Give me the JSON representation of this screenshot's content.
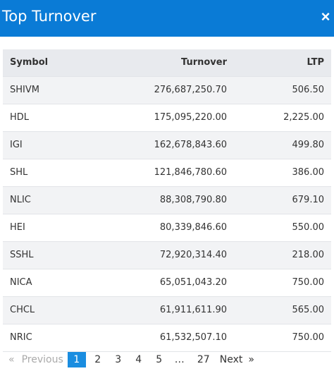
{
  "header": {
    "title": "Top Turnover",
    "close_icon": "×"
  },
  "table": {
    "columns": [
      "Symbol",
      "Turnover",
      "LTP"
    ],
    "rows": [
      [
        "SHIVM",
        "276,687,250.70",
        "506.50"
      ],
      [
        "HDL",
        "175,095,220.00",
        "2,225.00"
      ],
      [
        "IGI",
        "162,678,843.60",
        "499.80"
      ],
      [
        "SHL",
        "121,846,780.60",
        "386.00"
      ],
      [
        "NLIC",
        "88,308,790.80",
        "679.10"
      ],
      [
        "HEI",
        "80,339,846.60",
        "550.00"
      ],
      [
        "SSHL",
        "72,920,314.40",
        "218.00"
      ],
      [
        "NICA",
        "65,051,043.20",
        "750.00"
      ],
      [
        "CHCL",
        "61,911,611.90",
        "565.00"
      ],
      [
        "NRIC",
        "61,532,507.10",
        "750.00"
      ]
    ]
  },
  "pagination": {
    "prev_arrow": "«",
    "prev_label": "Previous",
    "pages": [
      "1",
      "2",
      "3",
      "4",
      "5"
    ],
    "active_page": "1",
    "ellipsis": "…",
    "last_page": "27",
    "next_label": "Next",
    "next_arrow": "»"
  },
  "colors": {
    "header_bg": "#0a7bd6",
    "active_page_bg": "#1a8de0"
  }
}
